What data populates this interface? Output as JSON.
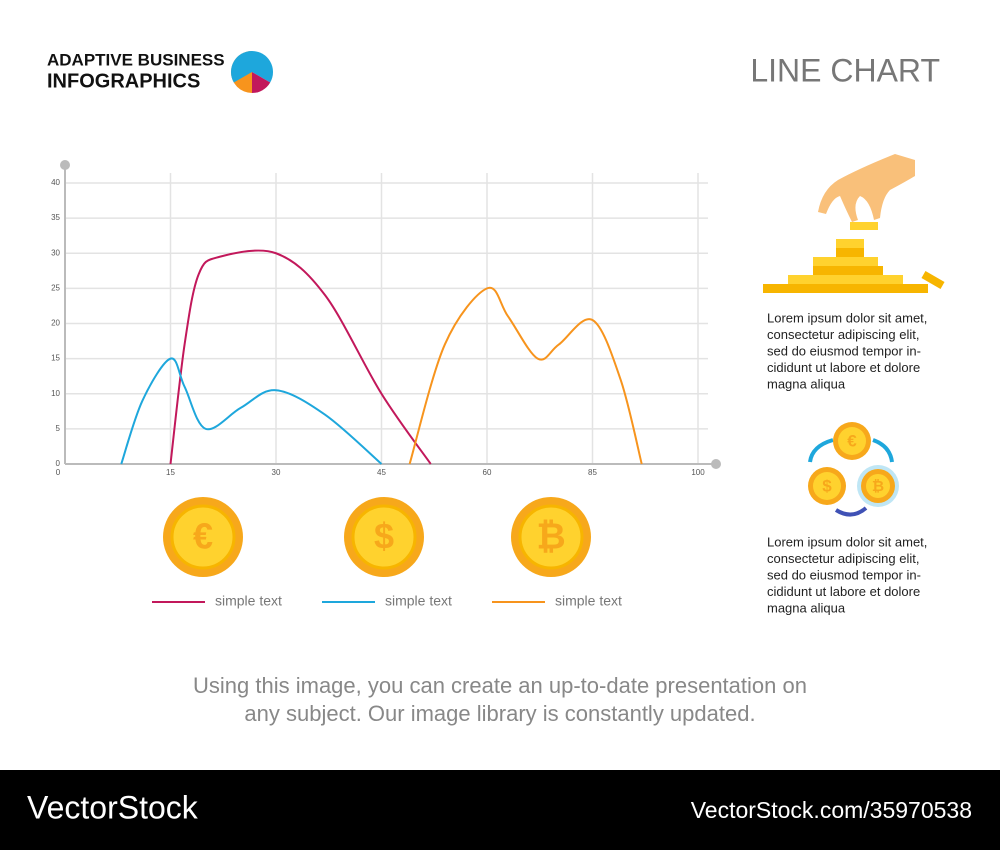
{
  "header": {
    "brand_lines": [
      "ADAPTIVE BUSINESS",
      "INFOGRAPHICS"
    ],
    "title": "LINE CHART"
  },
  "chart_data": {
    "type": "line",
    "series": [
      {
        "name": "simple text",
        "color": "#c2185b",
        "x": [
          15,
          17,
          19,
          22,
          30,
          37,
          45,
          52
        ],
        "values": [
          0,
          17,
          27,
          29.5,
          30,
          24,
          10,
          0
        ]
      },
      {
        "name": "simple text",
        "color": "#1ea7dc",
        "x": [
          8,
          11,
          15,
          17,
          20,
          25,
          30,
          37,
          45
        ],
        "values": [
          0,
          9,
          15,
          11,
          5,
          8,
          10.5,
          7,
          0
        ]
      },
      {
        "name": "simple text",
        "color": "#f7941d",
        "x": [
          49,
          54,
          60,
          65,
          72,
          77,
          85,
          89,
          92
        ],
        "values": [
          0,
          17,
          25,
          21,
          15,
          17,
          20.5,
          12,
          0
        ]
      }
    ],
    "xlim": [
      0,
      100
    ],
    "xticks": [
      0,
      15,
      30,
      45,
      60,
      85,
      100
    ],
    "ylim": [
      0,
      40
    ],
    "yticks": [
      0,
      5,
      10,
      15,
      20,
      25,
      30,
      35,
      40
    ],
    "grid": true,
    "smooth": true
  },
  "coins": [
    "€",
    "$",
    "₿"
  ],
  "side": {
    "paragraphs": [
      [
        "Lorem ipsum dolor sit amet,",
        "consectetur adipiscing elit,",
        "sed do eiusmod tempor in-",
        "cididunt ut labore et dolore",
        "magna aliqua"
      ],
      [
        "Lorem ipsum dolor sit amet,",
        "consectetur adipiscing elit,",
        "sed do eiusmod tempor in-",
        "cididunt ut labore et dolore",
        "magna aliqua"
      ]
    ]
  },
  "footer": {
    "caption": [
      "Using this image, you can create an up-to-date presentation on",
      "any subject. Our image library is constantly updated."
    ],
    "brand": "VectorStock",
    "id": "VectorStock.com/35970538"
  }
}
